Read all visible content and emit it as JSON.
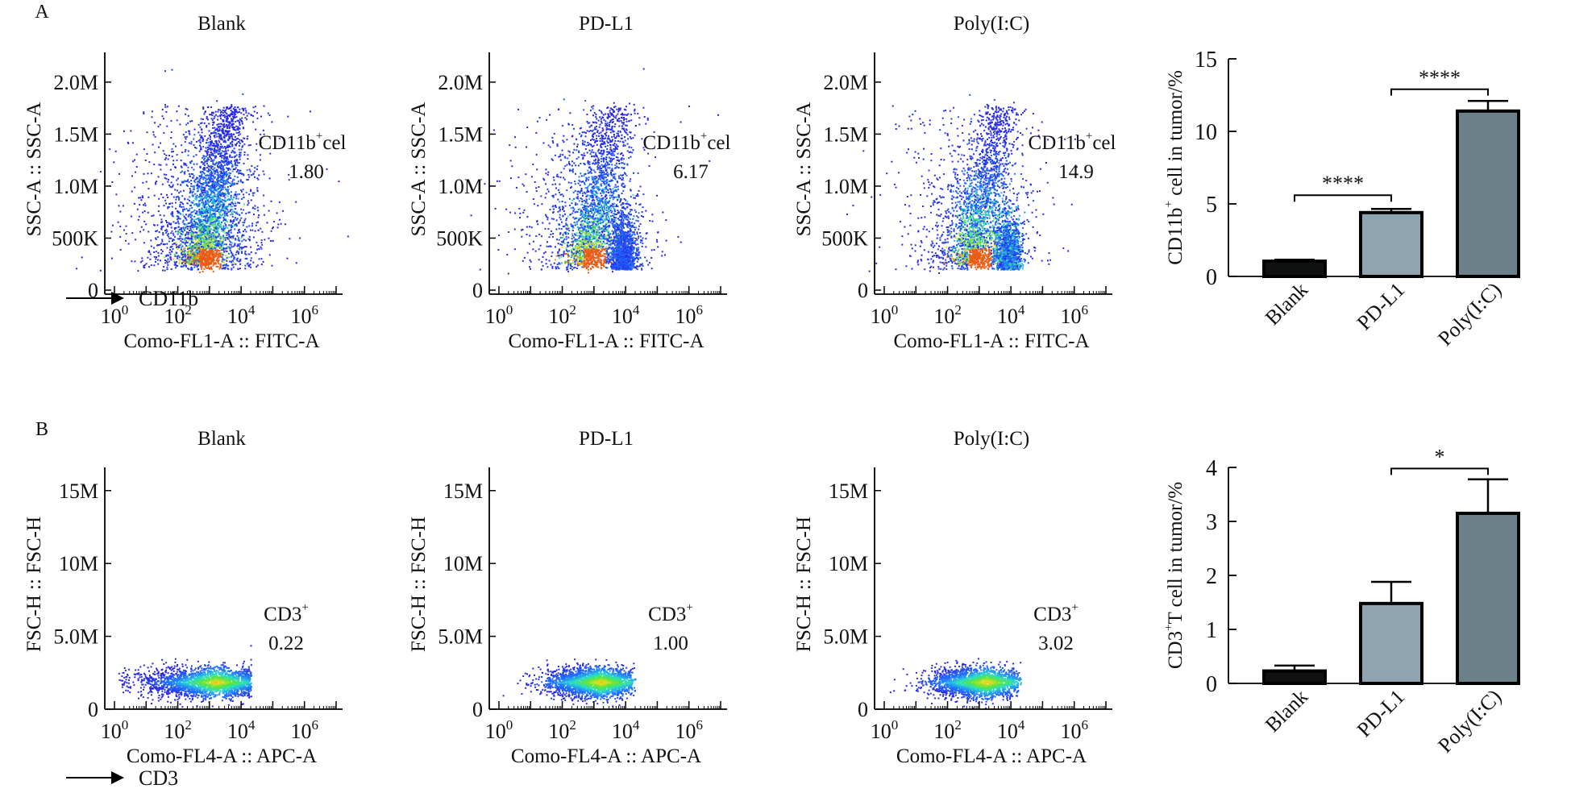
{
  "panels": {
    "a_label": "A",
    "b_label": "B"
  },
  "marker_a": "CD11b",
  "marker_b": "CD3",
  "chart_data": [
    {
      "type": "scatter",
      "panel": "A",
      "title": "Blank",
      "ylabel": "SSC-A :: SSC-A",
      "xlabel": "Como-FL1-A :: FITC-A",
      "yticks": [
        "0",
        "500K",
        "1.0M",
        "1.5M",
        "2.0M"
      ],
      "xticks": [
        "10^0",
        "10^2",
        "10^4",
        "10^6"
      ],
      "ylim": [
        0,
        2000000
      ],
      "xlim_log10": [
        0,
        7
      ],
      "gate_label": "CD11b⁺cel",
      "gate_value": "1.80",
      "shape": "A",
      "seed": 11
    },
    {
      "type": "scatter",
      "panel": "A",
      "title": "PD-L1",
      "ylabel": "SSC-A :: SSC-A",
      "xlabel": "Como-FL1-A :: FITC-A",
      "yticks": [
        "0",
        "500K",
        "1.0M",
        "1.5M",
        "2.0M"
      ],
      "xticks": [
        "10^0",
        "10^2",
        "10^4",
        "10^6"
      ],
      "ylim": [
        0,
        2000000
      ],
      "xlim_log10": [
        0,
        7
      ],
      "gate_label": "CD11b⁺cel",
      "gate_value": "6.17",
      "shape": "A2",
      "seed": 23
    },
    {
      "type": "scatter",
      "panel": "A",
      "title": "Poly(I:C)",
      "ylabel": "SSC-A :: SSC-A",
      "xlabel": "Como-FL1-A :: FITC-A",
      "yticks": [
        "0",
        "500K",
        "1.0M",
        "1.5M",
        "2.0M"
      ],
      "xticks": [
        "10^0",
        "10^2",
        "10^4",
        "10^6"
      ],
      "ylim": [
        0,
        2000000
      ],
      "xlim_log10": [
        0,
        7
      ],
      "gate_label": "CD11b⁺cel",
      "gate_value": "14.9",
      "shape": "A3",
      "seed": 37
    },
    {
      "type": "bar",
      "panel": "A",
      "categories": [
        "Blank",
        "PD-L1",
        "Poly(I:C)"
      ],
      "values": [
        1.05,
        4.4,
        11.4
      ],
      "errors": [
        0.1,
        0.25,
        0.7
      ],
      "ylabel": "CD11b⁺ cell in tumor/%",
      "ylim": [
        0,
        15
      ],
      "yticks": [
        "0",
        "5",
        "10",
        "15"
      ],
      "significance": [
        {
          "from": 0,
          "to": 1,
          "label": "****",
          "y": 5.6
        },
        {
          "from": 1,
          "to": 2,
          "label": "****",
          "y": 12.9
        }
      ],
      "colors": [
        "#0f1110",
        "#8fa3b0",
        "#6b8089"
      ]
    },
    {
      "type": "scatter",
      "panel": "B",
      "title": "Blank",
      "ylabel": "FSC-H :: FSC-H",
      "xlabel": "Como-FL4-A :: APC-A",
      "yticks": [
        "0",
        "5.0M",
        "10M",
        "15M"
      ],
      "xticks": [
        "10^0",
        "10^2",
        "10^4",
        "10^6"
      ],
      "ylim": [
        0,
        17000000
      ],
      "xlim_log10": [
        0,
        7
      ],
      "gate_label": "CD3⁺",
      "gate_value": "0.22",
      "shape": "B1",
      "seed": 51
    },
    {
      "type": "scatter",
      "panel": "B",
      "title": "PD-L1",
      "ylabel": "FSC-H :: FSC-H",
      "xlabel": "Como-FL4-A :: APC-A",
      "yticks": [
        "0",
        "5.0M",
        "10M",
        "15M"
      ],
      "xticks": [
        "10^0",
        "10^2",
        "10^4",
        "10^6"
      ],
      "ylim": [
        0,
        17000000
      ],
      "xlim_log10": [
        0,
        7
      ],
      "gate_label": "CD3⁺",
      "gate_value": "1.00",
      "shape": "B2",
      "seed": 63
    },
    {
      "type": "scatter",
      "panel": "B",
      "title": "Poly(I:C)",
      "ylabel": "FSC-H :: FSC-H",
      "xlabel": "Como-FL4-A :: APC-A",
      "yticks": [
        "0",
        "5.0M",
        "10M",
        "15M"
      ],
      "xticks": [
        "10^0",
        "10^2",
        "10^4",
        "10^6"
      ],
      "ylim": [
        0,
        17000000
      ],
      "xlim_log10": [
        0,
        7
      ],
      "gate_label": "CD3⁺",
      "gate_value": "3.02",
      "shape": "B3",
      "seed": 77
    },
    {
      "type": "bar",
      "panel": "B",
      "categories": [
        "Blank",
        "PD-L1",
        "Poly(I:C)"
      ],
      "values": [
        0.23,
        1.48,
        3.15
      ],
      "errors": [
        0.1,
        0.4,
        0.63
      ],
      "ylabel": "CD3⁺T cell in tumor/%",
      "ylim": [
        0,
        4
      ],
      "yticks": [
        "0",
        "1",
        "2",
        "3",
        "4"
      ],
      "significance": [
        {
          "from": 1,
          "to": 2,
          "label": "*",
          "y": 3.98
        }
      ],
      "colors": [
        "#0f1110",
        "#8fa3b0",
        "#6b8089"
      ]
    }
  ]
}
